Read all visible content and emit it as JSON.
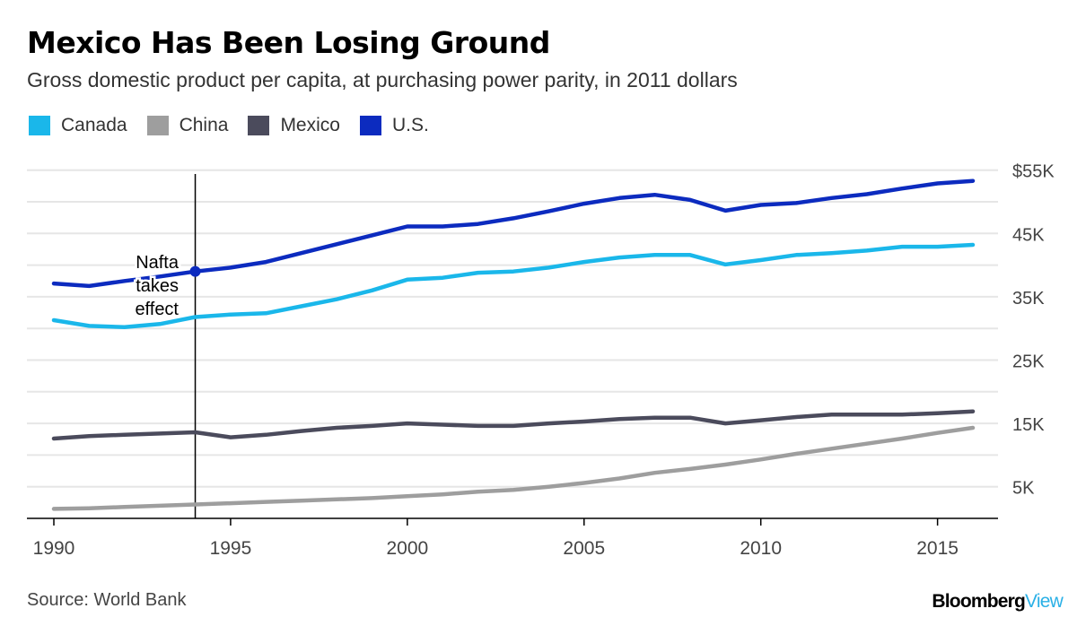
{
  "header": {
    "title": "Mexico Has Been Losing Ground",
    "subtitle": "Gross domestic product per capita, at purchasing power parity, in 2011 dollars"
  },
  "footer": {
    "source": "Source: World Bank",
    "brand_part1": "Bloomberg",
    "brand_part2": "View"
  },
  "chart_data": {
    "type": "line",
    "title": "Mexico Has Been Losing Ground",
    "subtitle": "Gross domestic product per capita, at purchasing power parity, in 2011 dollars",
    "xlim": [
      1990,
      2016
    ],
    "ylim": [
      0,
      57000
    ],
    "x_ticks": [
      1990,
      1995,
      2000,
      2005,
      2010,
      2015
    ],
    "x_tick_labels": [
      "1990",
      "1995",
      "2000",
      "2005",
      "2010",
      "2015"
    ],
    "y_ticks": [
      5000,
      15000,
      25000,
      35000,
      45000,
      55000
    ],
    "y_tick_labels": [
      "5K",
      "15K",
      "25K",
      "35K",
      "45K",
      "$55K"
    ],
    "gridlines": [
      5000,
      10000,
      15000,
      20000,
      25000,
      30000,
      35000,
      40000,
      45000,
      50000,
      55000
    ],
    "grid": true,
    "legend_position": "top-left",
    "x": [
      1990,
      1991,
      1992,
      1993,
      1994,
      1995,
      1996,
      1997,
      1998,
      1999,
      2000,
      2001,
      2002,
      2003,
      2004,
      2005,
      2006,
      2007,
      2008,
      2009,
      2010,
      2011,
      2012,
      2013,
      2014,
      2015,
      2016
    ],
    "series": [
      {
        "name": "Canada",
        "color": "#1ab7ea",
        "values": [
          31300,
          30400,
          30200,
          30700,
          31800,
          32200,
          32400,
          33500,
          34600,
          36000,
          37700,
          38000,
          38800,
          39000,
          39600,
          40500,
          41200,
          41600,
          41600,
          40100,
          40800,
          41600,
          41900,
          42300,
          42900,
          42900,
          43200
        ]
      },
      {
        "name": "China",
        "color": "#9e9e9e",
        "values": [
          1500,
          1600,
          1800,
          2000,
          2200,
          2400,
          2600,
          2800,
          3000,
          3200,
          3500,
          3800,
          4200,
          4500,
          5000,
          5600,
          6300,
          7200,
          7800,
          8500,
          9300,
          10200,
          11000,
          11800,
          12600,
          13500,
          14300
        ]
      },
      {
        "name": "Mexico",
        "color": "#4b4b5c",
        "values": [
          12600,
          13000,
          13200,
          13400,
          13600,
          12800,
          13200,
          13800,
          14300,
          14600,
          15000,
          14800,
          14600,
          14600,
          15000,
          15300,
          15700,
          15900,
          15900,
          15000,
          15500,
          16000,
          16400,
          16400,
          16400,
          16600,
          16900
        ]
      },
      {
        "name": "U.S.",
        "color": "#0c2bbf",
        "values": [
          37100,
          36700,
          37500,
          38200,
          39000,
          39600,
          40500,
          41900,
          43300,
          44700,
          46100,
          46100,
          46500,
          47400,
          48500,
          49700,
          50600,
          51100,
          50300,
          48600,
          49500,
          49800,
          50600,
          51200,
          52100,
          52900,
          53300
        ]
      }
    ],
    "annotation": {
      "year": 1994,
      "text_lines": [
        "Nafta",
        "takes",
        "effect"
      ],
      "series": "U.S.",
      "value": 39000
    }
  }
}
